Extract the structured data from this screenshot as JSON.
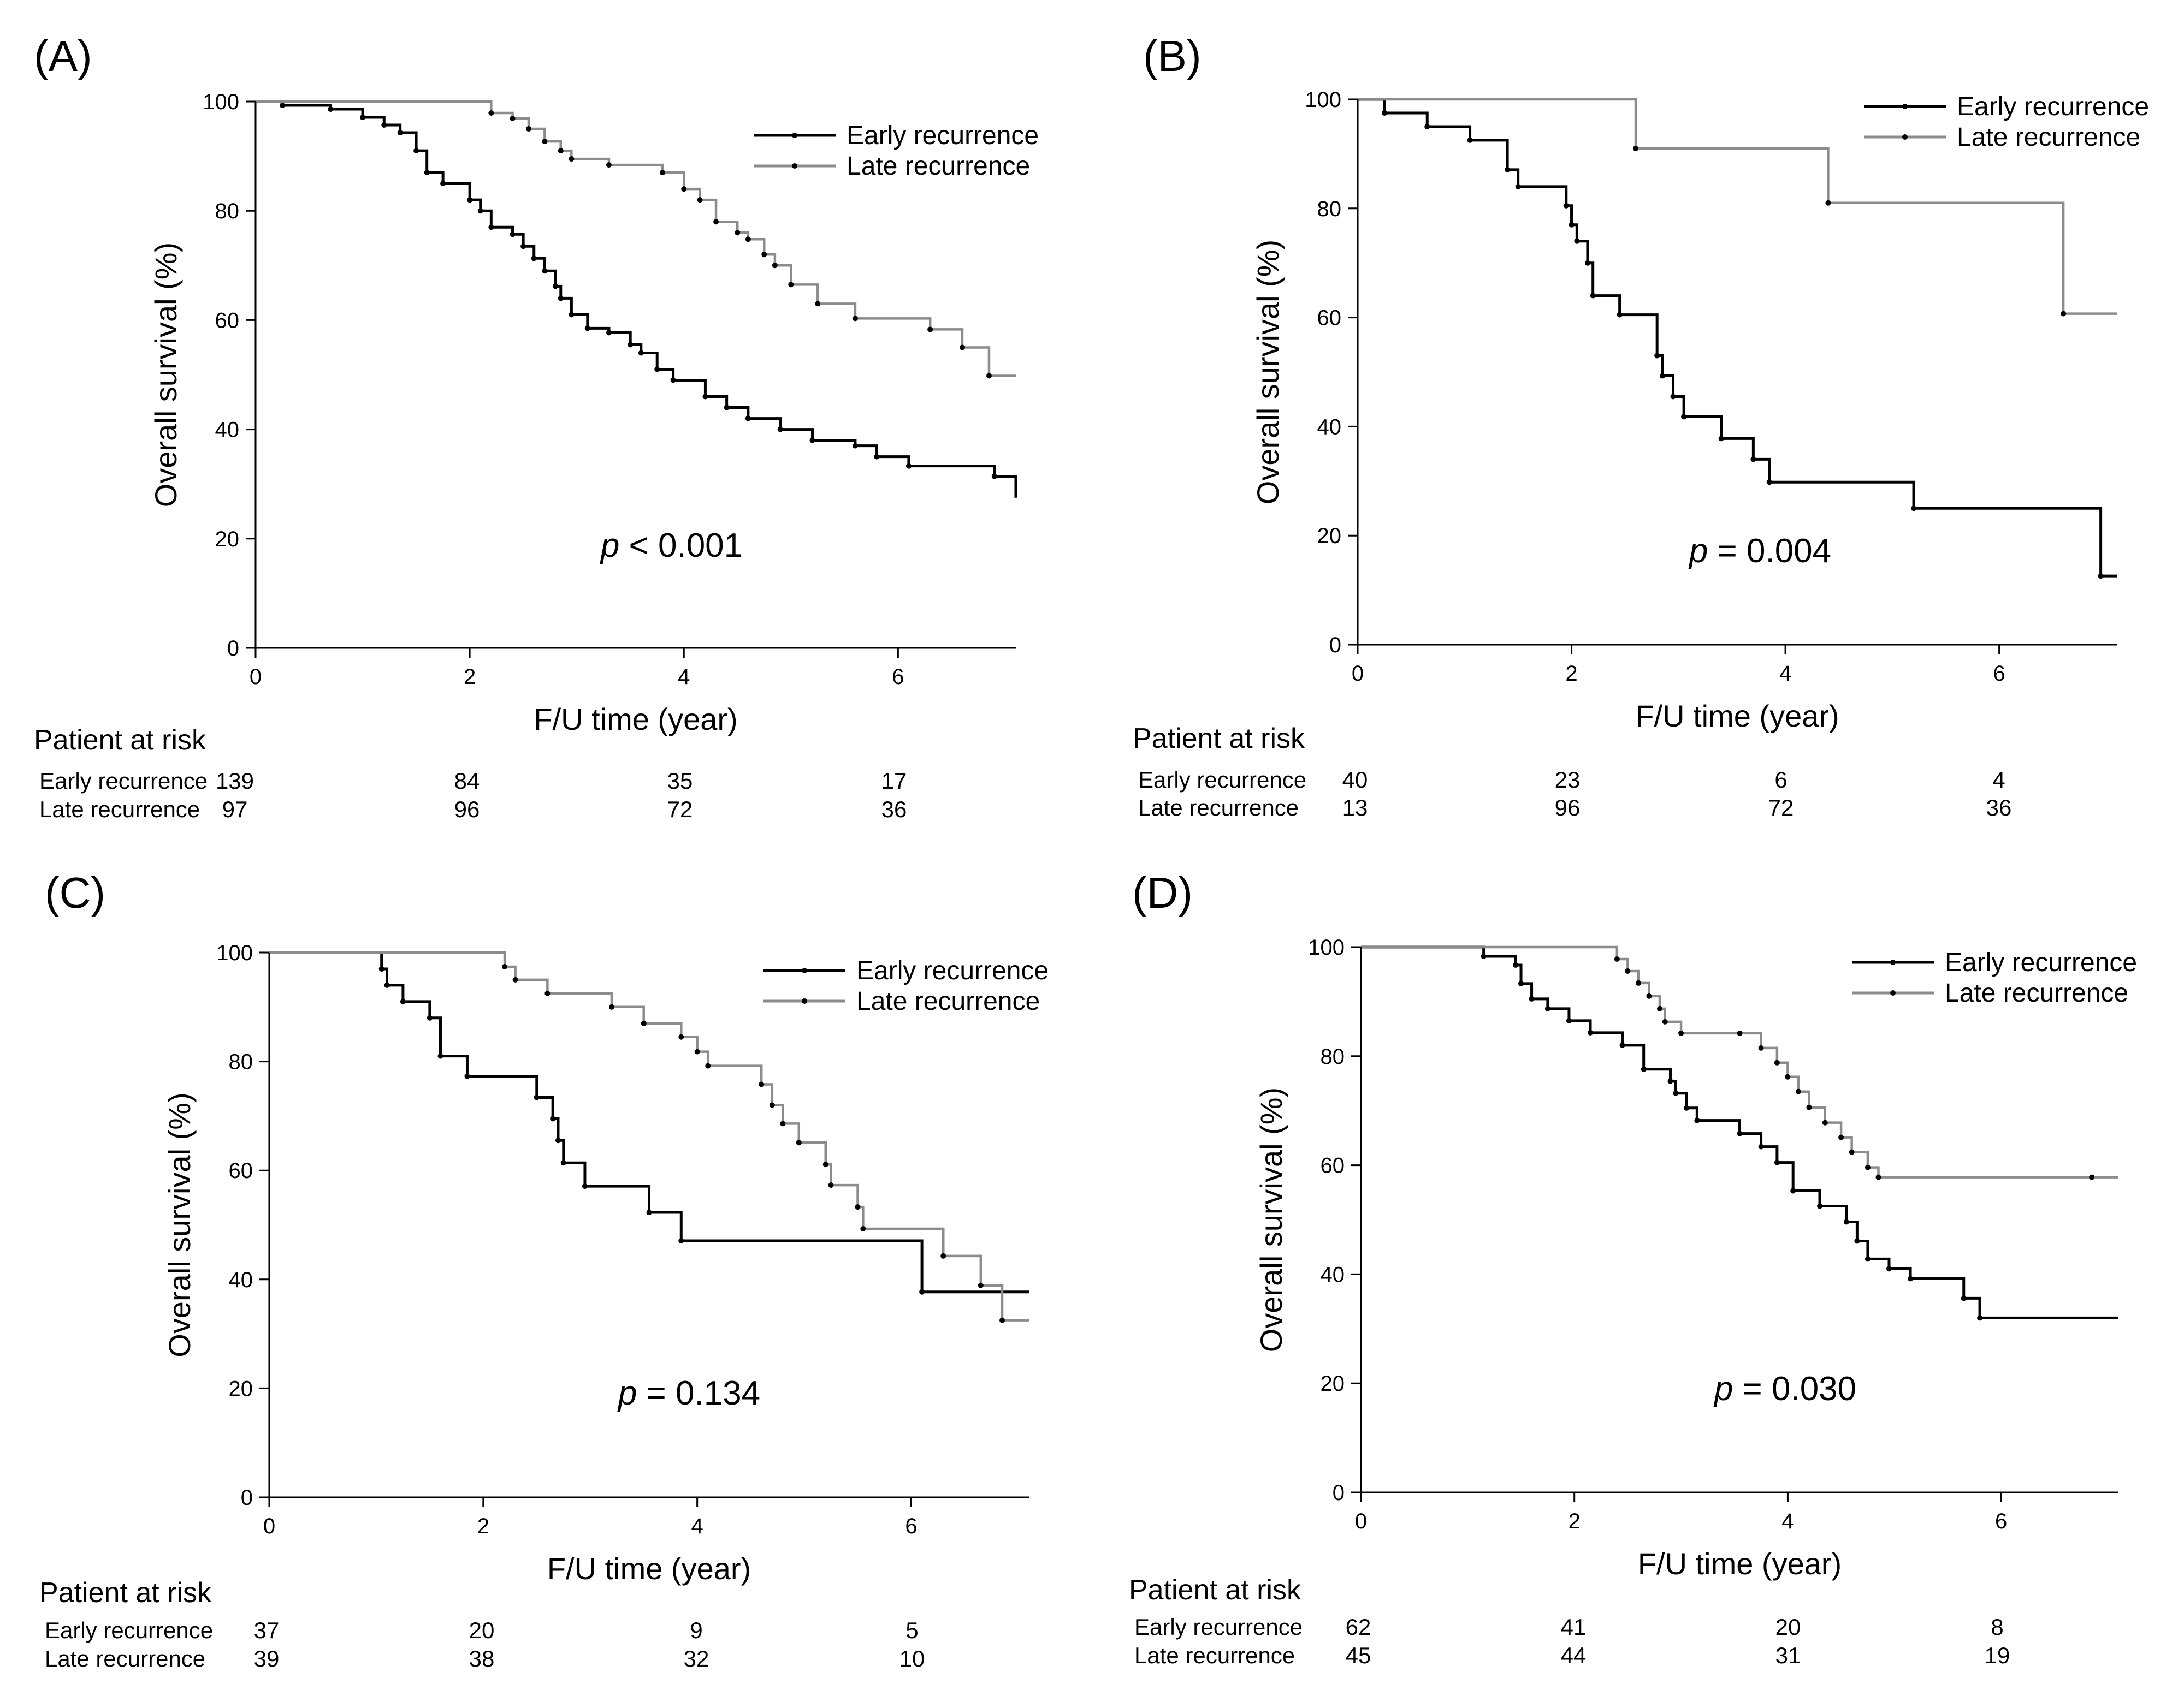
{
  "chart_data": [
    {
      "panel_label": "(A)",
      "type": "line",
      "xlabel": "F/U time (year)",
      "ylabel": "Overall survival (%)",
      "xlim": [
        0,
        7.1
      ],
      "ylim": [
        0,
        100
      ],
      "xticks": [
        "0",
        "2",
        "4",
        "6"
      ],
      "yticks": [
        "0",
        "20",
        "40",
        "60",
        "80",
        "100"
      ],
      "p_symbol": "p",
      "p_text": " < 0.001",
      "legend_position": "top-right",
      "series": [
        {
          "name": "Early recurrence",
          "color": "#000000",
          "x": [
            0,
            0.25,
            0.7,
            1.0,
            1.2,
            1.35,
            1.5,
            1.6,
            1.75,
            2.0,
            2.1,
            2.2,
            2.4,
            2.5,
            2.6,
            2.7,
            2.8,
            2.85,
            2.95,
            3.1,
            3.3,
            3.5,
            3.6,
            3.75,
            3.9,
            4.2,
            4.4,
            4.6,
            4.9,
            5.2,
            5.6,
            5.8,
            6.1,
            6.9,
            7.1
          ],
          "y": [
            100,
            99.3,
            98.6,
            97.1,
            95.7,
            94.3,
            91,
            87,
            85,
            82,
            80,
            77,
            75.7,
            73.5,
            71.3,
            69,
            66.2,
            64,
            61,
            58.5,
            57.7,
            55.5,
            54,
            51,
            49,
            46,
            44,
            42,
            40,
            38,
            37,
            35,
            33.3,
            31.4,
            27.5
          ]
        },
        {
          "name": "Late recurrence",
          "color": "#8c8c8c",
          "x": [
            0,
            2.2,
            2.4,
            2.55,
            2.7,
            2.85,
            2.95,
            3.3,
            3.8,
            4.0,
            4.15,
            4.3,
            4.5,
            4.6,
            4.75,
            4.85,
            5.0,
            5.25,
            5.6,
            6.3,
            6.6,
            6.85,
            7.1
          ],
          "y": [
            100,
            97.9,
            96.9,
            95,
            92.7,
            91,
            89.5,
            88.4,
            87,
            84,
            82,
            78,
            76,
            74.8,
            72,
            70,
            66.5,
            63,
            60.3,
            58.3,
            55,
            49.8,
            49.8
          ]
        }
      ],
      "risk_table": {
        "title": "Patient at risk",
        "rows": [
          {
            "label": "Early recurrence",
            "values": [
              "139",
              "84",
              "35",
              "17"
            ]
          },
          {
            "label": "Late recurrence",
            "values": [
              "97",
              "96",
              "72",
              "36"
            ]
          }
        ]
      }
    },
    {
      "panel_label": "(B)",
      "type": "line",
      "xlabel": "F/U time (year)",
      "ylabel": "Overall survival (%)",
      "xlim": [
        0,
        7.1
      ],
      "ylim": [
        0,
        100
      ],
      "xticks": [
        "0",
        "2",
        "4",
        "6"
      ],
      "yticks": [
        "0",
        "20",
        "40",
        "60",
        "80",
        "100"
      ],
      "p_symbol": "p",
      "p_text": " = 0.004",
      "legend_position": "top-right",
      "series": [
        {
          "name": "Early recurrence",
          "color": "#000000",
          "x": [
            0,
            0.25,
            0.65,
            1.05,
            1.4,
            1.5,
            1.95,
            2.0,
            2.05,
            2.15,
            2.2,
            2.45,
            2.8,
            2.85,
            2.95,
            3.05,
            3.4,
            3.7,
            3.85,
            5.2,
            6.95,
            7.1
          ],
          "y": [
            100,
            97.5,
            95,
            92.5,
            87.1,
            84,
            80.5,
            77,
            74,
            70,
            64,
            60.5,
            53,
            49.3,
            45.5,
            41.8,
            37.8,
            34,
            29.8,
            25,
            12.6,
            12.6
          ]
        },
        {
          "name": "Late recurrence",
          "color": "#8c8c8c",
          "x": [
            0,
            2.6,
            4.4,
            6.6,
            7.1
          ],
          "y": [
            100,
            91,
            81,
            60.7,
            60.7
          ]
        }
      ],
      "risk_table": {
        "title": "Patient at risk",
        "rows": [
          {
            "label": "Early recurrence",
            "values": [
              "40",
              "23",
              "6",
              "4"
            ]
          },
          {
            "label": "Late recurrence",
            "values": [
              "13",
              "96",
              "72",
              "36"
            ]
          }
        ]
      }
    },
    {
      "panel_label": "(C)",
      "type": "line",
      "xlabel": "F/U time (year)",
      "ylabel": "Overall survival (%)",
      "xlim": [
        0,
        7.1
      ],
      "ylim": [
        0,
        100
      ],
      "xticks": [
        "0",
        "2",
        "4",
        "6"
      ],
      "yticks": [
        "0",
        "20",
        "40",
        "60",
        "80",
        "100"
      ],
      "p_symbol": "p",
      "p_text": " = 0.134",
      "legend_position": "top-right",
      "series": [
        {
          "name": "Early recurrence",
          "color": "#000000",
          "x": [
            0,
            1.05,
            1.1,
            1.25,
            1.5,
            1.6,
            1.85,
            2.5,
            2.65,
            2.7,
            2.75,
            2.95,
            3.55,
            3.85,
            6.1,
            7.1
          ],
          "y": [
            100,
            97,
            94,
            91,
            88,
            81,
            77.3,
            73.4,
            69.5,
            65.5,
            61.4,
            57.1,
            52.3,
            47.1,
            37.7,
            37.7
          ]
        },
        {
          "name": "Late recurrence",
          "color": "#8c8c8c",
          "x": [
            0,
            2.2,
            2.3,
            2.6,
            3.2,
            3.5,
            3.85,
            4.0,
            4.1,
            4.6,
            4.7,
            4.8,
            4.95,
            5.2,
            5.25,
            5.5,
            5.55,
            6.3,
            6.65,
            6.85,
            7.1
          ],
          "y": [
            100,
            97.4,
            95,
            92.5,
            90,
            87,
            84.5,
            81.8,
            79.2,
            75.8,
            72,
            68.6,
            65.1,
            61.1,
            57.3,
            53.3,
            49.3,
            44.3,
            38.9,
            32.5,
            32.5
          ]
        }
      ],
      "risk_table": {
        "title": "Patient at risk",
        "rows": [
          {
            "label": "Early recurrence",
            "values": [
              "37",
              "20",
              "9",
              "5"
            ]
          },
          {
            "label": "Late recurrence",
            "values": [
              "39",
              "38",
              "32",
              "10"
            ]
          }
        ]
      }
    },
    {
      "panel_label": "(D)",
      "type": "line",
      "xlabel": "F/U time (year)",
      "ylabel": "Overall survival (%)",
      "xlim": [
        0,
        7.1
      ],
      "ylim": [
        0,
        100
      ],
      "xticks": [
        "0",
        "2",
        "4",
        "6"
      ],
      "yticks": [
        "0",
        "20",
        "40",
        "60",
        "80",
        "100"
      ],
      "p_symbol": "p",
      "p_text": " = 0.030",
      "legend_position": "top-right",
      "series": [
        {
          "name": "Early recurrence",
          "color": "#000000",
          "x": [
            0,
            1.15,
            1.45,
            1.5,
            1.6,
            1.75,
            1.95,
            2.15,
            2.45,
            2.65,
            2.9,
            2.95,
            3.05,
            3.15,
            3.55,
            3.75,
            3.9,
            4.05,
            4.3,
            4.55,
            4.65,
            4.75,
            4.95,
            5.15,
            5.65,
            5.8,
            7.1
          ],
          "y": [
            100,
            98.3,
            96.7,
            93.3,
            90.5,
            88.7,
            86.5,
            84.3,
            82,
            77.6,
            75.4,
            73.2,
            70.5,
            68.2,
            65.8,
            63.4,
            60.5,
            55.3,
            52.5,
            49.6,
            46.1,
            42.8,
            41,
            39.2,
            35.6,
            32,
            32
          ]
        },
        {
          "name": "Late recurrence",
          "color": "#8c8c8c",
          "x": [
            0,
            2.4,
            2.5,
            2.6,
            2.7,
            2.8,
            2.85,
            3.0,
            3.55,
            3.75,
            3.9,
            4.0,
            4.1,
            4.2,
            4.35,
            4.5,
            4.6,
            4.75,
            4.85,
            6.85,
            7.1
          ],
          "y": [
            100,
            97.8,
            95.6,
            93.4,
            91,
            88.7,
            86.3,
            84.2,
            84.2,
            81.5,
            78.8,
            76.2,
            73.5,
            70.6,
            67.8,
            65.1,
            62.4,
            59.6,
            57.8,
            57.8,
            57.8
          ]
        }
      ],
      "risk_table": {
        "title": "Patient at risk",
        "rows": [
          {
            "label": "Early recurrence",
            "values": [
              "62",
              "41",
              "20",
              "8"
            ]
          },
          {
            "label": "Late recurrence",
            "values": [
              "45",
              "44",
              "31",
              "19"
            ]
          }
        ]
      }
    }
  ]
}
